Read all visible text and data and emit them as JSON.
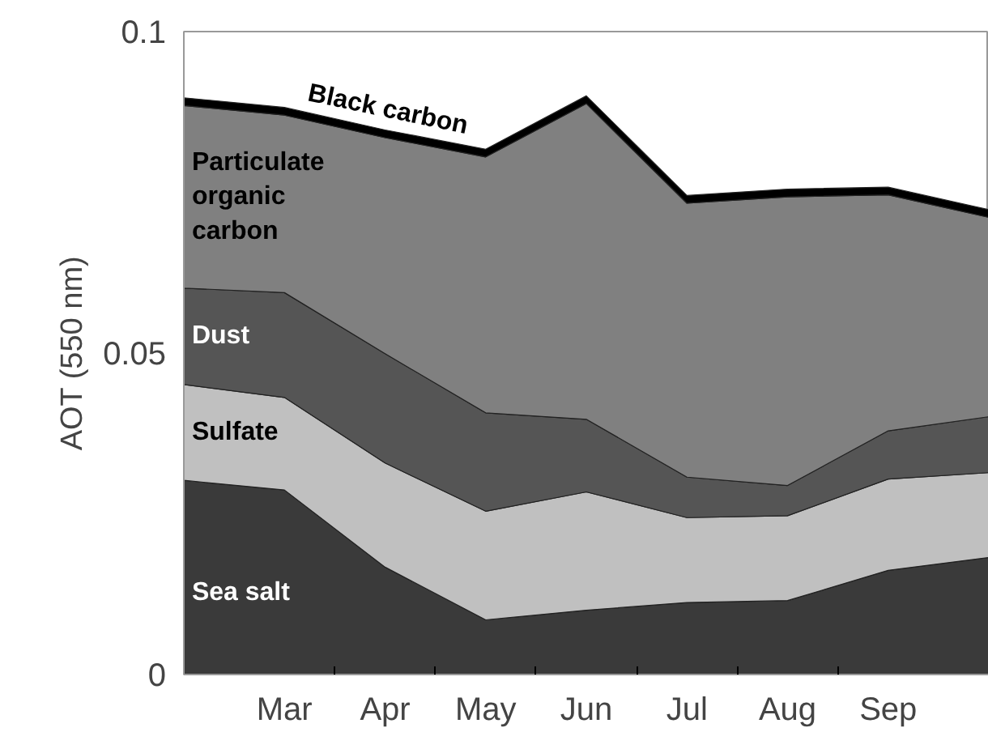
{
  "chart_data": {
    "type": "area",
    "stacked": true,
    "ylabel": "AOT (550 nm)",
    "categories": [
      null,
      "Mar",
      "Apr",
      "May",
      "Jun",
      "Jul",
      "Aug",
      "Sep",
      null
    ],
    "ylim": [
      0,
      0.1
    ],
    "yticks": [
      0,
      0.05,
      0.1
    ],
    "grid": false,
    "series": [
      {
        "name": "Sea salt",
        "color": "#3a3a3a",
        "values": [
          0.0302,
          0.0287,
          0.0167,
          0.0085,
          0.01,
          0.0112,
          0.0115,
          0.0162,
          0.0182
        ]
      },
      {
        "name": "Sulfate",
        "color": "#c0c0c0",
        "values": [
          0.0149,
          0.0144,
          0.0162,
          0.0169,
          0.0184,
          0.0132,
          0.0132,
          0.0142,
          0.0132
        ]
      },
      {
        "name": "Dust",
        "color": "#555555",
        "values": [
          0.015,
          0.0163,
          0.017,
          0.0153,
          0.0113,
          0.0063,
          0.0047,
          0.0075,
          0.0087
        ]
      },
      {
        "name": "Particulate organic carbon",
        "color": "#808080",
        "values": [
          0.0284,
          0.0276,
          0.0336,
          0.0398,
          0.0491,
          0.0426,
          0.0449,
          0.0367,
          0.031
        ]
      },
      {
        "name": "Black carbon",
        "color": "#000000",
        "values": [
          0.0012,
          0.0012,
          0.0012,
          0.0012,
          0.0012,
          0.0012,
          0.0012,
          0.0012,
          0.0012
        ]
      }
    ]
  }
}
